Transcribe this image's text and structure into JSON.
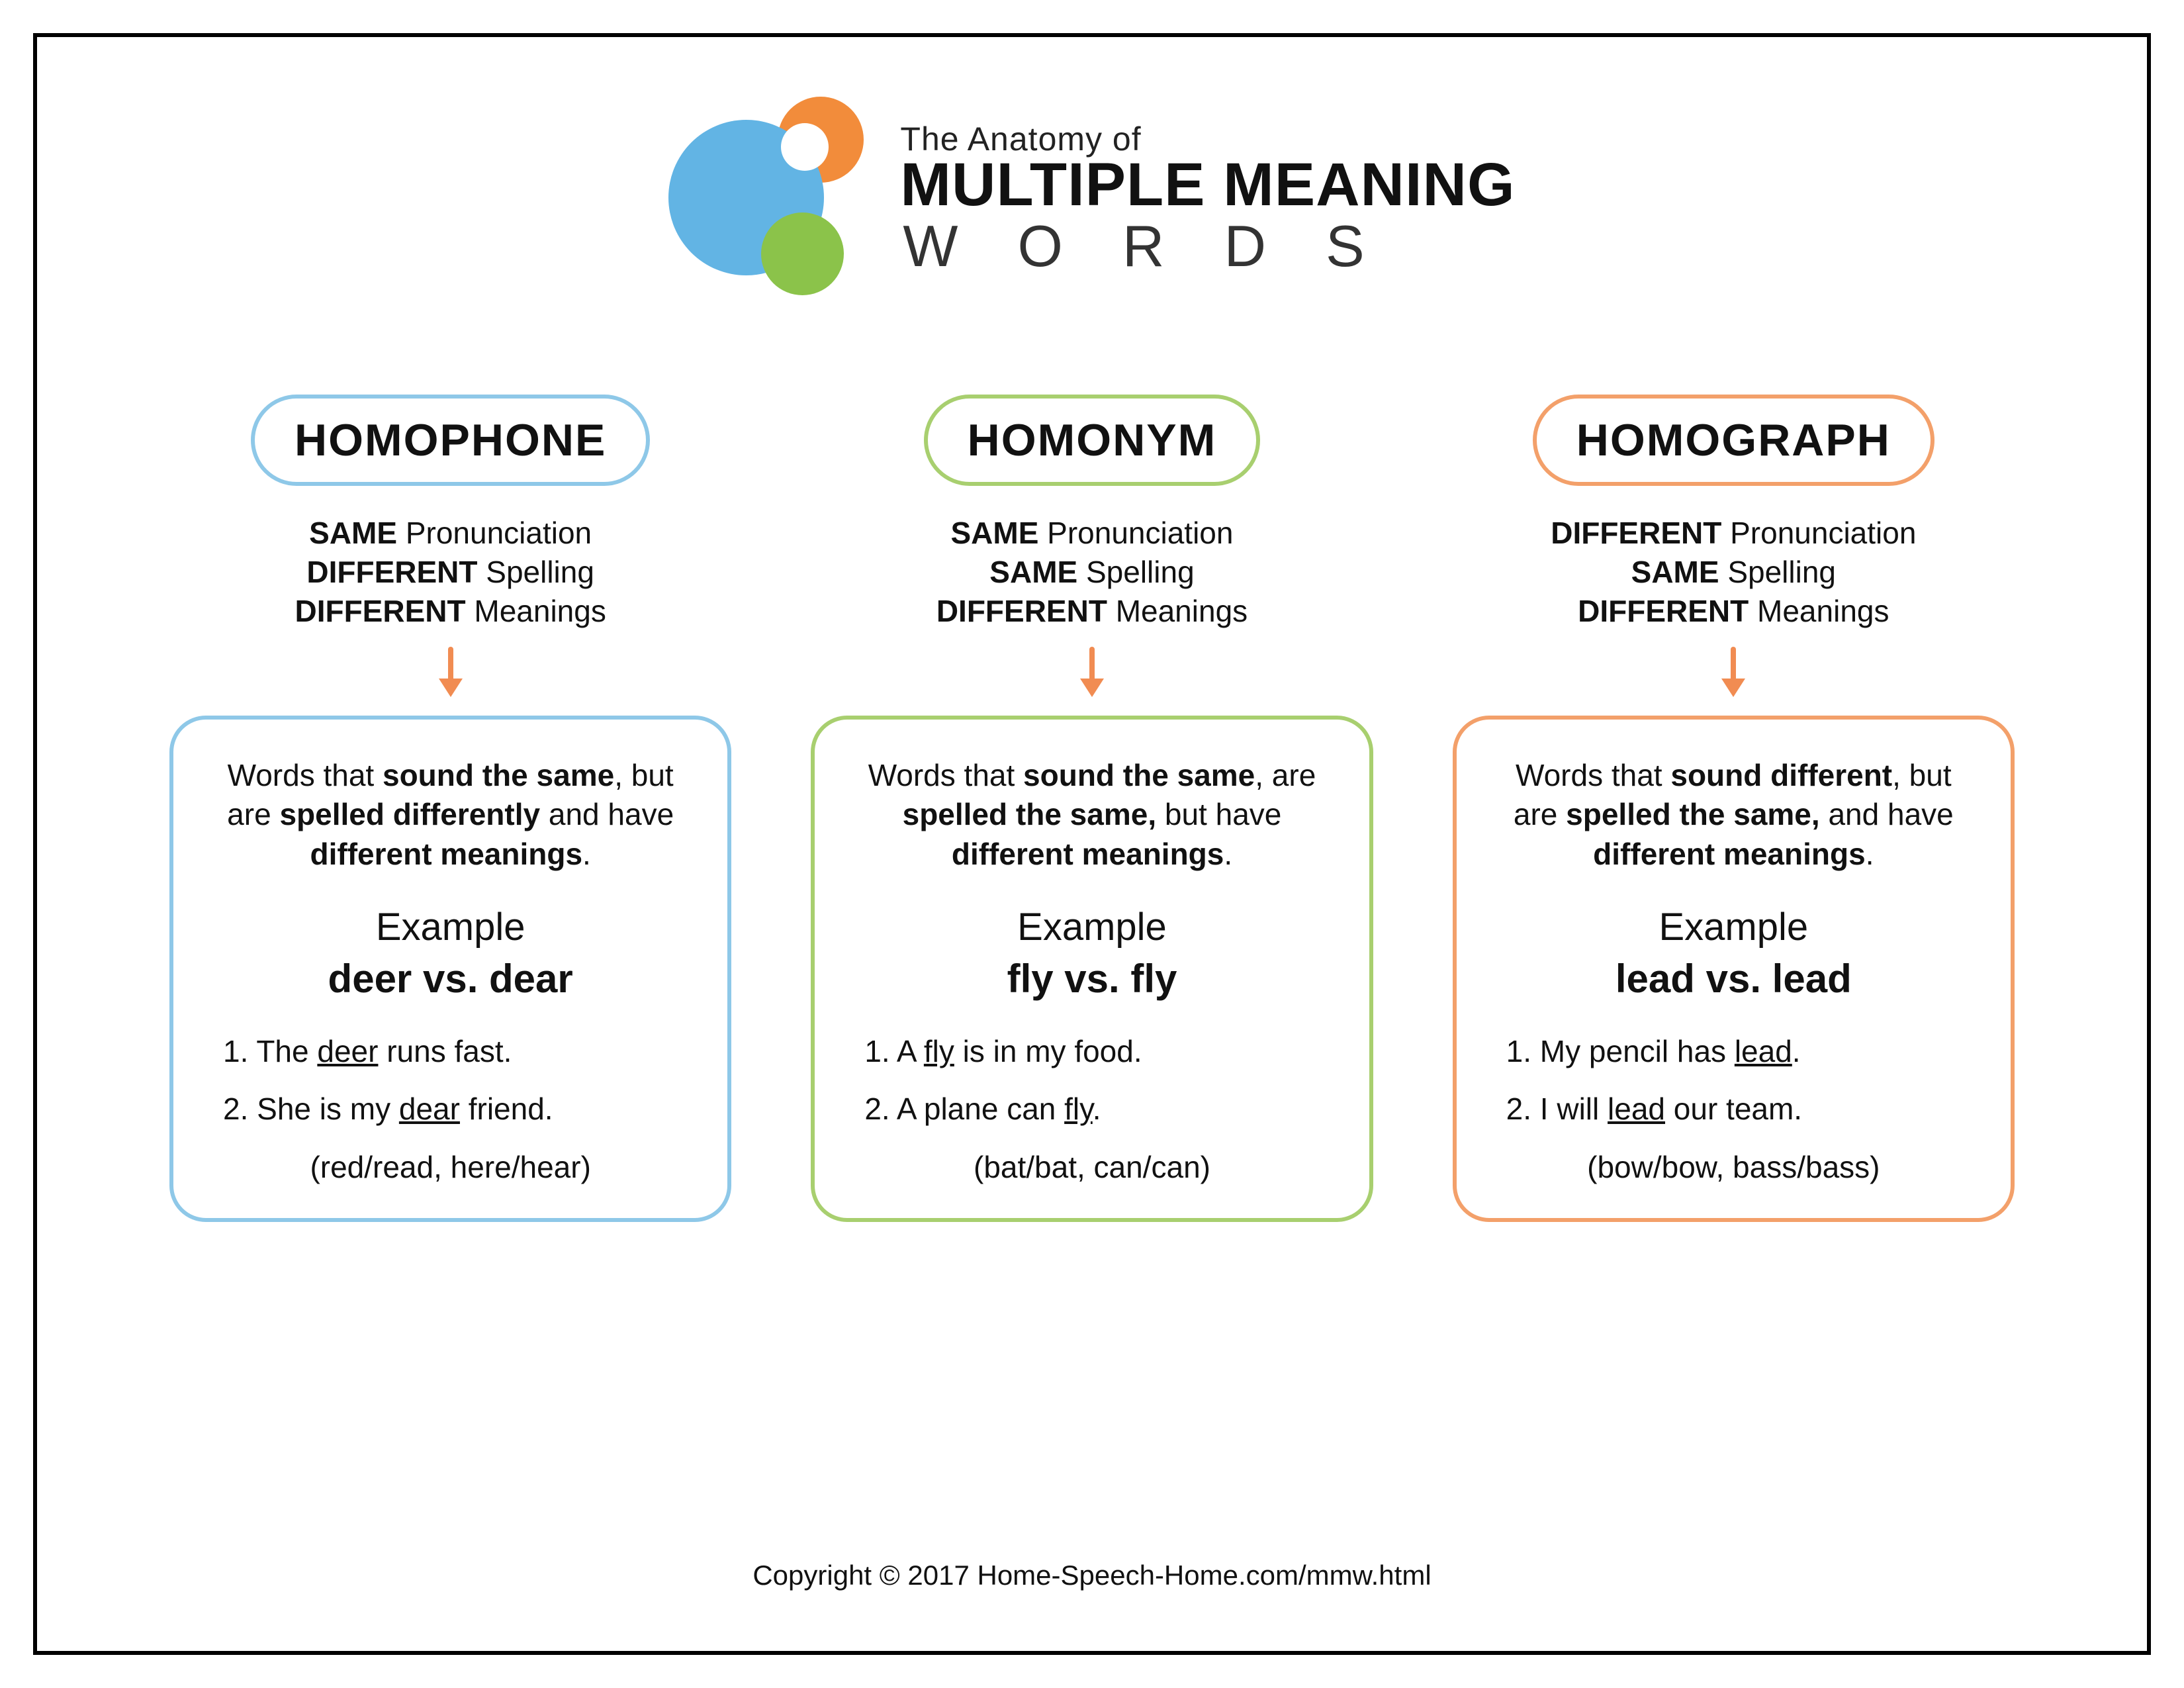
{
  "colors": {
    "blue": "#8ec8e8",
    "green": "#a8cf6f",
    "orange": "#f3a06a",
    "arrow": "#f18c52",
    "logo_blue": "#62b4e4",
    "logo_orange": "#f28c3b",
    "logo_green": "#8bc34a",
    "logo_white": "#ffffff"
  },
  "header": {
    "pre": "The Anatomy of",
    "main": "MULTIPLE MEANING",
    "sub": "WORDS"
  },
  "columns": [
    {
      "color_key": "blue",
      "title": "HOMOPHONE",
      "prop1_b": "SAME",
      "prop1_t": "Pronunciation",
      "prop2_b": "DIFFERENT",
      "prop2_t": "Spelling",
      "prop3_b": "DIFFERENT",
      "prop3_t": "Meanings",
      "desc_parts": [
        "Words that ",
        "sound the same",
        ", but are ",
        "spelled differently",
        " and have ",
        "different meanings",
        "."
      ],
      "example_label": "Example",
      "example_vs": "deer vs. dear",
      "sentence1_pre": "1. The ",
      "sentence1_u": "deer",
      "sentence1_post": " runs fast.",
      "sentence2_pre": "2. She is my ",
      "sentence2_u": "dear",
      "sentence2_post": " friend.",
      "more": "(red/read, here/hear)"
    },
    {
      "color_key": "green",
      "title": "HOMONYM",
      "prop1_b": "SAME",
      "prop1_t": "Pronunciation",
      "prop2_b": "SAME",
      "prop2_t": "Spelling",
      "prop3_b": "DIFFERENT",
      "prop3_t": "Meanings",
      "desc_parts": [
        "Words that ",
        "sound the same",
        ", are ",
        "spelled the same,",
        " but have ",
        "different meanings",
        "."
      ],
      "example_label": "Example",
      "example_vs": "fly vs. fly",
      "sentence1_pre": "1. A ",
      "sentence1_u": "fly",
      "sentence1_post": " is in my food.",
      "sentence2_pre": "2. A plane can ",
      "sentence2_u": "fly",
      "sentence2_post": ".",
      "more": "(bat/bat, can/can)"
    },
    {
      "color_key": "orange",
      "title": "HOMOGRAPH",
      "prop1_b": "DIFFERENT",
      "prop1_t": "Pronunciation",
      "prop2_b": "SAME",
      "prop2_t": "Spelling",
      "prop3_b": "DIFFERENT",
      "prop3_t": "Meanings",
      "desc_parts": [
        "Words that ",
        "sound different",
        ", but are ",
        "spelled the same,",
        " and have ",
        "different meanings",
        "."
      ],
      "example_label": "Example",
      "example_vs": "lead vs. lead",
      "sentence1_pre": "1. My pencil has ",
      "sentence1_u": "lead",
      "sentence1_post": ".",
      "sentence2_pre": "2. I will ",
      "sentence2_u": "lead",
      "sentence2_post": " our team.",
      "more": "(bow/bow, bass/bass)"
    }
  ],
  "copyright": "Copyright © 2017 Home-Speech-Home.com/mmw.html"
}
